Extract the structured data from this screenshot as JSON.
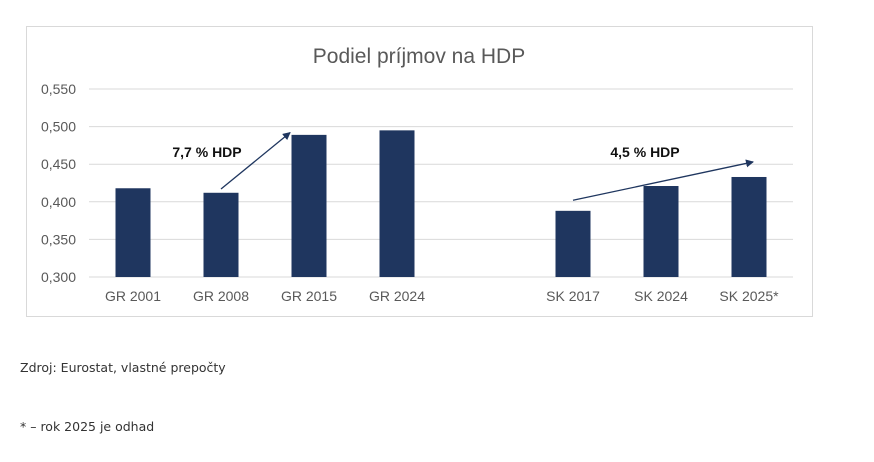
{
  "chart_data": {
    "type": "bar",
    "title": "Podiel príjmov na HDP",
    "categories": [
      "GR 2001",
      "GR 2008",
      "GR 2015",
      "GR 2024",
      "",
      "SK 2017",
      "SK 2024",
      "SK 2025*"
    ],
    "values": [
      0.418,
      0.412,
      0.489,
      0.495,
      null,
      0.388,
      0.421,
      0.433
    ],
    "ylim": [
      0.3,
      0.55
    ],
    "yticks": [
      0.3,
      0.35,
      0.4,
      0.45,
      0.5,
      0.55
    ],
    "ytick_labels": [
      "0,300",
      "0,350",
      "0,400",
      "0,450",
      "0,500",
      "0,550"
    ],
    "xlabel": "",
    "ylabel": "",
    "grid": true,
    "bar_color": "#1f365f",
    "annotations": [
      {
        "text": "7,7 % HDP",
        "arrow_from": {
          "category": "GR 2008",
          "value": 0.417
        },
        "arrow_to": {
          "category": "GR 2015",
          "value": 0.492
        }
      },
      {
        "text": "4,5 % HDP",
        "arrow_from": {
          "category": "SK 2017",
          "value": 0.402
        },
        "arrow_to": {
          "category": "SK 2025*",
          "value": 0.453
        }
      }
    ]
  },
  "notes": {
    "source": "Zdroj: Eurostat, vlastné prepočty",
    "footnote": "* – rok 2025 je odhad"
  }
}
